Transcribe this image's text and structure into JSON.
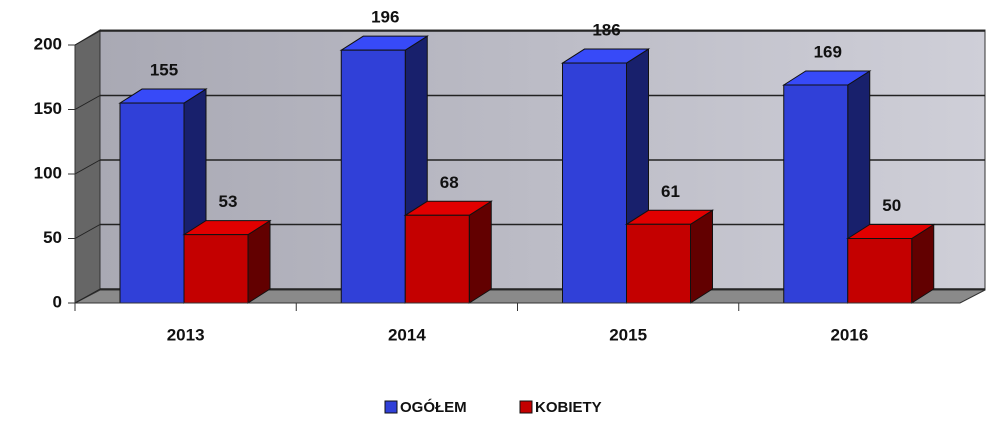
{
  "chart_data": {
    "type": "bar3d",
    "categories": [
      "2013",
      "2014",
      "2015",
      "2016"
    ],
    "series": [
      {
        "name": "OGÓŁEM",
        "color": "#3040d8",
        "values": [
          155,
          196,
          186,
          169
        ]
      },
      {
        "name": "KOBIETY",
        "color": "#c40000",
        "values": [
          53,
          68,
          61,
          50
        ]
      }
    ],
    "ylim": [
      0,
      200
    ],
    "yticks": [
      0,
      50,
      100,
      150,
      200
    ],
    "grid": true,
    "legend": "bottom"
  }
}
